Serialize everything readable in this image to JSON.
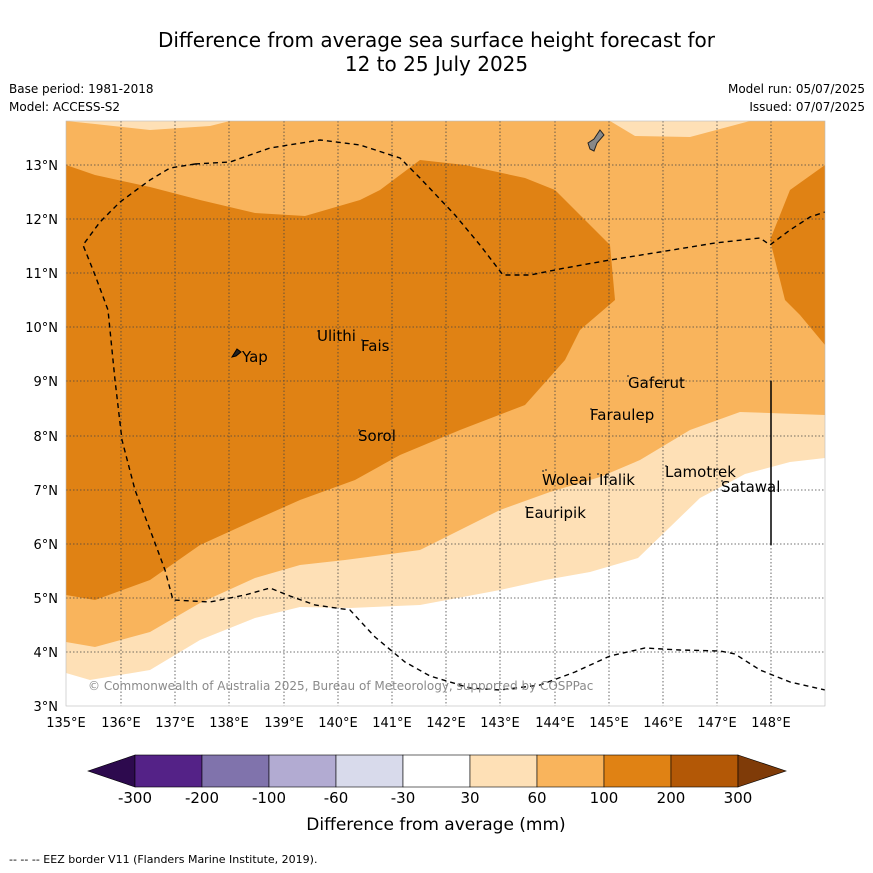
{
  "title_line1": "Difference from average sea surface height forecast for",
  "title_line2": "12 to 25 July 2025",
  "meta": {
    "base_period": "Base period: 1981-2018",
    "model": "Model: ACCESS-S2",
    "model_run": "Model run: 05/07/2025",
    "issued": "Issued: 07/07/2025"
  },
  "lon_ticks": [
    "135°E",
    "136°E",
    "137°E",
    "138°E",
    "139°E",
    "140°E",
    "141°E",
    "142°E",
    "143°E",
    "144°E",
    "145°E",
    "146°E",
    "147°E",
    "148°E"
  ],
  "lat_ticks": [
    "13°N",
    "12°N",
    "11°N",
    "10°N",
    "9°N",
    "8°N",
    "7°N",
    "6°N",
    "5°N",
    "4°N",
    "3°N"
  ],
  "places": [
    {
      "name": "Yap"
    },
    {
      "name": "Ulithi"
    },
    {
      "name": "Fais"
    },
    {
      "name": "Sorol"
    },
    {
      "name": "Gaferut"
    },
    {
      "name": "Faraulep"
    },
    {
      "name": "Woleai"
    },
    {
      "name": "Ifalik"
    },
    {
      "name": "Lamotrek"
    },
    {
      "name": "Satawal"
    },
    {
      "name": "Eauripik"
    }
  ],
  "copyright": "© Commonwealth of Australia 2025, Bureau of Meteorology, supported by COSPPac",
  "colorbar": {
    "labels": [
      "-300",
      "-200",
      "-100",
      "-60",
      "-30",
      "30",
      "60",
      "100",
      "200",
      "300"
    ],
    "title": "Difference from average (mm)",
    "colors": {
      "lt_minus300": "#2d0a4e",
      "m300_m200": "#542287",
      "m200_m100": "#8073ac",
      "m100_m60": "#b2abd2",
      "m60_m30": "#d8daeb",
      "m30_30": "#ffffff",
      "p30_60": "#fee0b6",
      "p60_100": "#f9b45c",
      "p100_200": "#e08214",
      "p200_300": "#b35806",
      "gt_300": "#7f3b08"
    }
  },
  "footnote": "--  --  -- EEZ border V11 (Flanders Marine Institute, 2019)."
}
